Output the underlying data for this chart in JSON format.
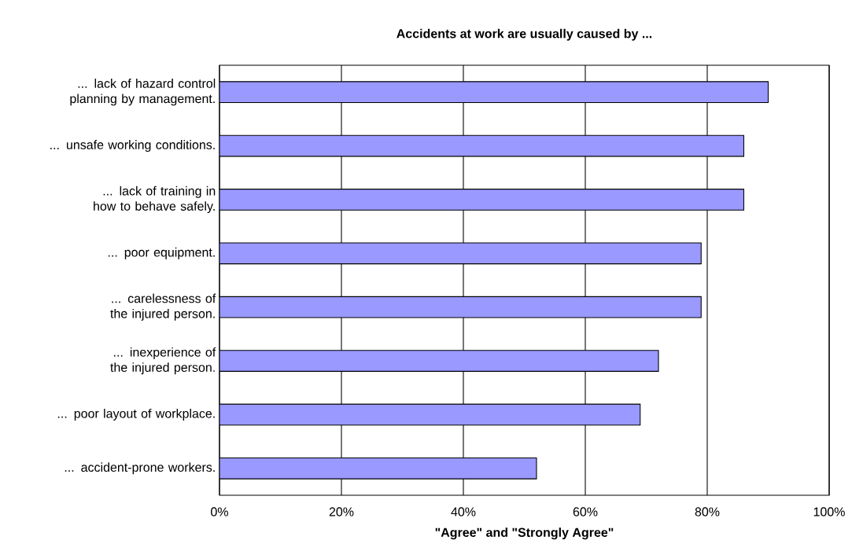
{
  "chart_data": {
    "type": "bar",
    "orientation": "horizontal",
    "title": "Accidents at work are usually caused by ...",
    "xlabel": "\"Agree\" and \"Strongly Agree\"",
    "categories": [
      "... lack of hazard control planning by management.",
      "... unsafe working conditions.",
      "... lack of training in how to behave safely.",
      "... poor equipment.",
      "... carelessness of the injured person.",
      "... inexperience of the injured person.",
      "... poor layout of workplace.",
      "... accident-prone workers."
    ],
    "values": [
      90,
      86,
      86,
      79,
      79,
      72,
      69,
      52
    ],
    "color": "#9999ff",
    "xlim": [
      0,
      100
    ],
    "xticks": [
      {
        "value": 0,
        "label": "0%"
      },
      {
        "value": 20,
        "label": "20%"
      },
      {
        "value": 40,
        "label": "40%"
      },
      {
        "value": 60,
        "label": "60%"
      },
      {
        "value": 80,
        "label": "80%"
      },
      {
        "value": 100,
        "label": "100%"
      }
    ],
    "grid": "x"
  }
}
